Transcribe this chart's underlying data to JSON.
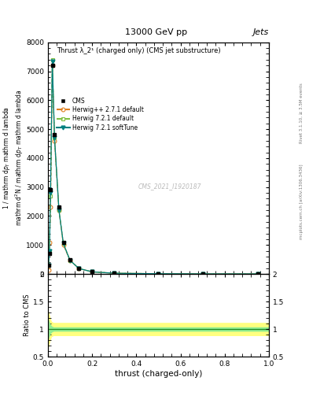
{
  "title_top": "13000 GeV pp",
  "title_right": "Jets",
  "watermark": "CMS_2021_I1920187",
  "rivet_text": "Rivet 3.1.10, ≥ 3.5M events",
  "mcplots_text": "mcplots.cern.ch [arXiv:1306.3436]",
  "xlabel": "thrust (charged-only)",
  "ylabel_ratio": "Ratio to CMS",
  "ylim_main": [
    0,
    8000
  ],
  "ylim_ratio": [
    0.5,
    2.0
  ],
  "xlim": [
    0,
    1.0
  ],
  "yticks_main": [
    0,
    1000,
    2000,
    3000,
    4000,
    5000,
    6000,
    7000,
    8000
  ],
  "ytick_labels_main": [
    "0",
    "1000",
    "2000",
    "3000",
    "4000",
    "5000",
    "6000",
    "7000",
    "8000"
  ],
  "yticks_ratio": [
    0.5,
    1.0,
    1.5,
    2.0
  ],
  "ytick_labels_ratio": [
    "0.5",
    "1",
    "1.5",
    "2"
  ],
  "cms_x": [
    0.003,
    0.007,
    0.012,
    0.02,
    0.03,
    0.05,
    0.07,
    0.1,
    0.14,
    0.2,
    0.3,
    0.5,
    0.7,
    0.95
  ],
  "cms_y": [
    300,
    700,
    2900,
    7200,
    4800,
    2300,
    1100,
    500,
    200,
    80,
    30,
    8,
    2,
    0.5
  ],
  "herwig_pp_x": [
    0.003,
    0.007,
    0.012,
    0.02,
    0.03,
    0.05,
    0.07,
    0.1,
    0.14,
    0.2,
    0.3,
    0.5,
    0.7,
    0.95
  ],
  "herwig_pp_y": [
    150,
    1100,
    2300,
    7200,
    4600,
    2200,
    1000,
    470,
    190,
    72,
    25,
    7,
    1.5,
    0.3
  ],
  "herwig721_x": [
    0.003,
    0.007,
    0.012,
    0.02,
    0.03,
    0.05,
    0.07,
    0.1,
    0.14,
    0.2,
    0.3,
    0.5,
    0.7,
    0.95
  ],
  "herwig721_y": [
    300,
    800,
    2700,
    7400,
    4700,
    2200,
    1050,
    470,
    190,
    72,
    25,
    7,
    1.5,
    0.3
  ],
  "herwig_soft_x": [
    0.003,
    0.007,
    0.012,
    0.02,
    0.03,
    0.05,
    0.07,
    0.1,
    0.14,
    0.2,
    0.3,
    0.5,
    0.7,
    0.95
  ],
  "herwig_soft_y": [
    300,
    800,
    2800,
    7350,
    4700,
    2200,
    1050,
    470,
    190,
    72,
    25,
    7,
    1.5,
    0.3
  ],
  "ratio_band_inner_color": "#90ee90",
  "ratio_band_outer_color": "#ffff80",
  "ratio_line_color": "#228B22",
  "cms_color": "#000000",
  "herwig_pp_color": "#E08020",
  "herwig721_color": "#80C040",
  "herwig_soft_color": "#008080",
  "background_color": "#ffffff"
}
